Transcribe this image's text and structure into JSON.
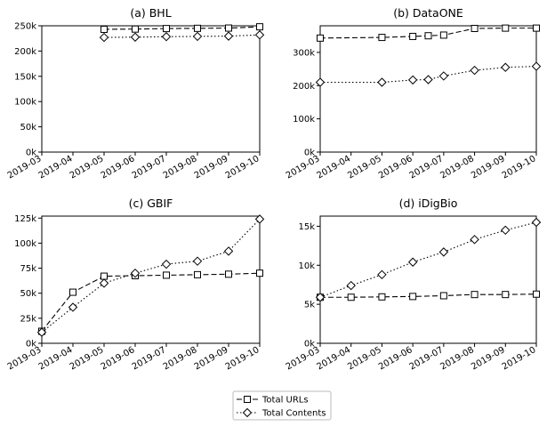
{
  "x_ticks": [
    "2019-03",
    "2019-04",
    "2019-05",
    "2019-06",
    "2019-07",
    "2019-08",
    "2019-09",
    "2019-10"
  ],
  "legend": {
    "placement": "bottom-center",
    "items": [
      {
        "label": "Total URLs",
        "style": "dashed",
        "marker": "square"
      },
      {
        "label": "Total Contents",
        "style": "dotted",
        "marker": "diamond"
      }
    ]
  },
  "chart_data": [
    {
      "type": "line",
      "title": "(a) BHL",
      "x": [
        "2019-05",
        "2019-06",
        "2019-07",
        "2019-08",
        "2019-09",
        "2019-10"
      ],
      "ylim": [
        0,
        250000
      ],
      "y_ticks": [
        {
          "v": 0,
          "label": "0k"
        },
        {
          "v": 50000,
          "label": "50k"
        },
        {
          "v": 100000,
          "label": "100k"
        },
        {
          "v": 150000,
          "label": "150k"
        },
        {
          "v": 200000,
          "label": "200k"
        },
        {
          "v": 250000,
          "label": "250k"
        }
      ],
      "series": [
        {
          "name": "Total URLs",
          "values": [
            243000,
            243500,
            244500,
            245000,
            245500,
            248000
          ]
        },
        {
          "name": "Total Contents",
          "values": [
            227000,
            227500,
            228500,
            229000,
            229500,
            232000
          ]
        }
      ]
    },
    {
      "type": "line",
      "title": "(b) DataONE",
      "x": [
        "2019-03",
        "2019-05",
        "2019-06",
        "2019-06",
        "2019-07",
        "2019-08",
        "2019-09",
        "2019-10"
      ],
      "ylim": [
        0,
        380000
      ],
      "y_ticks": [
        {
          "v": 0,
          "label": "0k"
        },
        {
          "v": 100000,
          "label": "100k"
        },
        {
          "v": 200000,
          "label": "200k"
        },
        {
          "v": 300000,
          "label": "300k"
        }
      ],
      "series": [
        {
          "name": "Total URLs",
          "values": [
            343000,
            345000,
            348000,
            350000,
            352000,
            372000,
            373000,
            373000
          ]
        },
        {
          "name": "Total Contents",
          "values": [
            210000,
            210000,
            217000,
            218000,
            229000,
            246000,
            255000,
            258000
          ]
        }
      ]
    },
    {
      "type": "line",
      "title": "(c) GBIF",
      "x": [
        "2019-03",
        "2019-04",
        "2019-05",
        "2019-06",
        "2019-07",
        "2019-08",
        "2019-09",
        "2019-10"
      ],
      "ylim": [
        0,
        127000
      ],
      "y_ticks": [
        {
          "v": 0,
          "label": "0k"
        },
        {
          "v": 25000,
          "label": "25k"
        },
        {
          "v": 50000,
          "label": "50k"
        },
        {
          "v": 75000,
          "label": "75k"
        },
        {
          "v": 100000,
          "label": "100k"
        },
        {
          "v": 125000,
          "label": "125k"
        }
      ],
      "series": [
        {
          "name": "Total URLs",
          "values": [
            12000,
            51000,
            67000,
            67500,
            68000,
            68500,
            69000,
            70000
          ]
        },
        {
          "name": "Total Contents",
          "values": [
            11000,
            36000,
            60000,
            70000,
            79000,
            82000,
            92000,
            124000
          ]
        }
      ]
    },
    {
      "type": "line",
      "title": "(d) iDigBio",
      "x": [
        "2019-03",
        "2019-04",
        "2019-05",
        "2019-06",
        "2019-07",
        "2019-08",
        "2019-09",
        "2019-10"
      ],
      "ylim": [
        0,
        16300
      ],
      "y_ticks": [
        {
          "v": 0,
          "label": "0k"
        },
        {
          "v": 5000,
          "label": "5k"
        },
        {
          "v": 10000,
          "label": "10k"
        },
        {
          "v": 15000,
          "label": "15k"
        }
      ],
      "series": [
        {
          "name": "Total URLs",
          "values": [
            5900,
            5900,
            5950,
            6000,
            6100,
            6250,
            6250,
            6300
          ]
        },
        {
          "name": "Total Contents",
          "values": [
            5900,
            7400,
            8800,
            10400,
            11700,
            13300,
            14500,
            15500
          ]
        }
      ]
    }
  ]
}
